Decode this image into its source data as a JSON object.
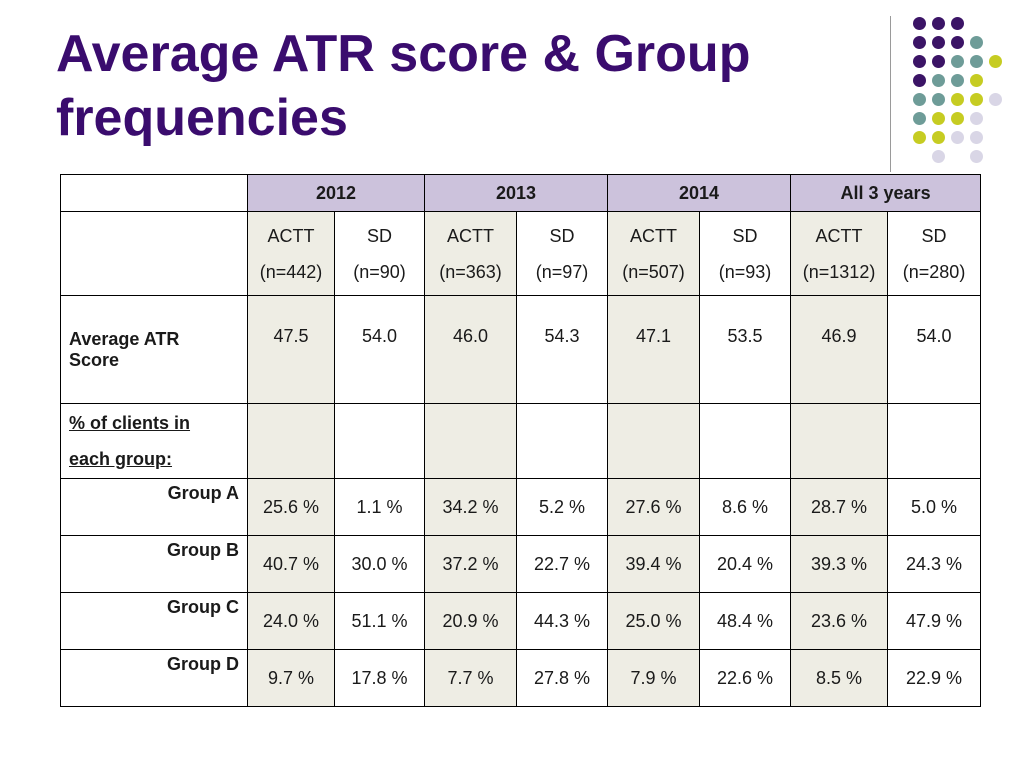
{
  "title": "Average ATR score & Group frequencies",
  "colors": {
    "title": "#3a0c6e",
    "year_header_bg": "#ccc2dc",
    "actt_col_bg": "#eeede4",
    "dot_purple": "#3b1466",
    "dot_teal": "#6e9c98",
    "dot_yellow": "#c6cc22",
    "dot_lavender": "#d9d6e6"
  },
  "table": {
    "years": [
      "2012",
      "2013",
      "2014",
      "All 3 years"
    ],
    "subheaders": [
      {
        "group": "ACTT",
        "n": "(n=442)"
      },
      {
        "group": "SD",
        "n": "(n=90)"
      },
      {
        "group": "ACTT",
        "n": "(n=363)"
      },
      {
        "group": "SD",
        "n": "(n=97)"
      },
      {
        "group": "ACTT",
        "n": "(n=507)"
      },
      {
        "group": "SD",
        "n": "(n=93)"
      },
      {
        "group": "ACTT",
        "n": "(n=1312)"
      },
      {
        "group": "SD",
        "n": "(n=280)"
      }
    ],
    "atr_label_1": "Average ATR",
    "atr_label_2": "Score",
    "atr_values": [
      "47.5",
      "54.0",
      "46.0",
      "54.3",
      "47.1",
      "53.5",
      "46.9",
      "54.0"
    ],
    "pct_label_1": "% of clients in",
    "pct_label_2": "each group:",
    "groups": [
      {
        "label": "Group A",
        "values": [
          "25.6 %",
          "1.1 %",
          "34.2 %",
          "5.2 %",
          "27.6 %",
          "8.6 %",
          "28.7 %",
          "5.0 %"
        ]
      },
      {
        "label": "Group B",
        "values": [
          "40.7 %",
          "30.0 %",
          "37.2 %",
          "22.7 %",
          "39.4 %",
          "20.4 %",
          "39.3 %",
          "24.3 %"
        ]
      },
      {
        "label": "Group C",
        "values": [
          "24.0 %",
          "51.1 %",
          "20.9 %",
          "44.3 %",
          "25.0 %",
          "48.4 %",
          "23.6 %",
          "47.9 %"
        ]
      },
      {
        "label": "Group D",
        "values": [
          "9.7 %",
          "17.8 %",
          "7.7 %",
          "27.8 %",
          "7.9 %",
          "22.6 %",
          "8.5 %",
          "22.9 %"
        ]
      }
    ]
  }
}
